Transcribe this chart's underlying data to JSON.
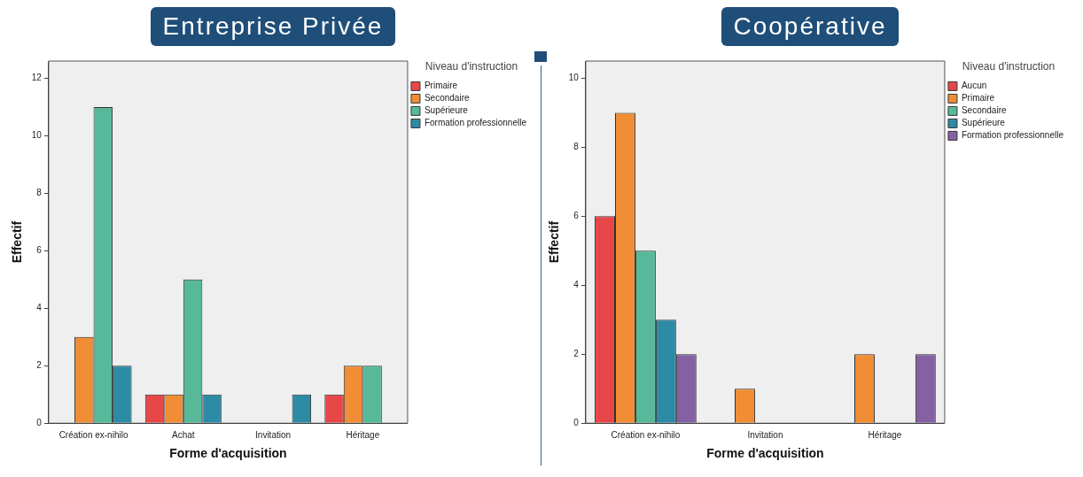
{
  "chart_data": [
    {
      "type": "bar",
      "title": "Entreprise Privée",
      "xlabel": "Forme d'acquisition",
      "ylabel": "Effectif",
      "legend_title": "Niveau d'instruction",
      "legend": "top right",
      "grid": false,
      "categories": [
        "Création ex-nihilo",
        "Achat",
        "Invitation",
        "Héritage"
      ],
      "ylim": [
        0,
        12.6
      ],
      "yticks": [
        0,
        2,
        4,
        6,
        8,
        10,
        12
      ],
      "series": [
        {
          "name": "Primaire",
          "color": "#e8474a",
          "values": [
            null,
            1,
            null,
            1
          ]
        },
        {
          "name": "Secondaire",
          "color": "#f08d35",
          "values": [
            3,
            1,
            null,
            2
          ]
        },
        {
          "name": "Supérieure",
          "color": "#57b99a",
          "values": [
            11,
            5,
            null,
            2
          ]
        },
        {
          "name": "Formation professionnelle",
          "color": "#2e8ba6",
          "values": [
            2,
            1,
            1,
            null
          ]
        }
      ]
    },
    {
      "type": "bar",
      "title": "Coopérative",
      "xlabel": "Forme d'acquisition",
      "ylabel": "Effectif",
      "legend_title": "Niveau d'instruction",
      "legend": "top right",
      "grid": false,
      "categories": [
        "Création ex-nihilo",
        "Invitation",
        "Héritage"
      ],
      "ylim": [
        0,
        10.5
      ],
      "yticks": [
        0,
        2,
        4,
        6,
        8,
        10
      ],
      "series": [
        {
          "name": "Aucun",
          "color": "#e8474a",
          "values": [
            6,
            null,
            null
          ]
        },
        {
          "name": "Primaire",
          "color": "#f08d35",
          "values": [
            9,
            1,
            2
          ]
        },
        {
          "name": "Secondaire",
          "color": "#57b99a",
          "values": [
            5,
            null,
            null
          ]
        },
        {
          "name": "Supérieure",
          "color": "#2e8ba6",
          "values": [
            3,
            null,
            null
          ]
        },
        {
          "name": "Formation professionnelle",
          "color": "#8461a3",
          "values": [
            2,
            null,
            2
          ]
        }
      ]
    }
  ]
}
